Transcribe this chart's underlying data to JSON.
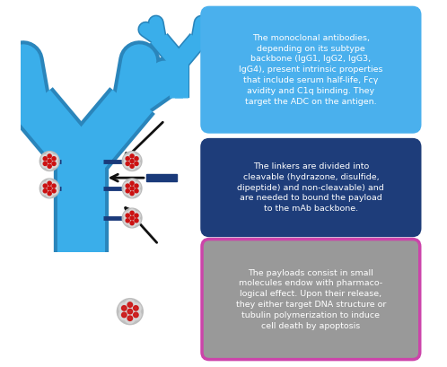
{
  "fig_width": 4.98,
  "fig_height": 4.09,
  "dpi": 100,
  "background_color": "#ffffff",
  "antibody_color": "#3aaeea",
  "antibody_shadow": "#2a85bb",
  "linker_color": "#1a3a7a",
  "payload_outer_color": "#bbbbbb",
  "payload_mid_color": "#d8d8d8",
  "payload_inner_color": "#eeeeee",
  "payload_dot_color": "#cc1111",
  "box1_bg": "#4ab0ed",
  "box1_border": "#4ab0ed",
  "box2_bg": "#1e3d7a",
  "box2_border": "#1e3d7a",
  "box3_bg": "#999999",
  "box3_border": "#cc44aa",
  "box1_text": "The monoclonal antibodies,\ndepending on its subtype\nbackbone (IgG1, IgG2, IgG3,\nIgG4), present intrinsic properties\nthat include serum half-life, Fcγ\navidity and C1q binding. They\ntarget the ADC on the antigen.",
  "box2_text": "The linkers are divided into\ncleavable (hydrazone, disulfide,\ndipeptide) and non-cleavable) and\nare needed to bound the payload\nto the mAb backbone.",
  "box3_text": "The payloads consist in small\nmolecules endow with pharmaco-\nlogical effect. Upon their release,\nthey either target DNA structure or\ntubulin polymerization to induce\ncell death by apoptosis",
  "text_color": "#ffffff",
  "arrow_color": "#111111"
}
